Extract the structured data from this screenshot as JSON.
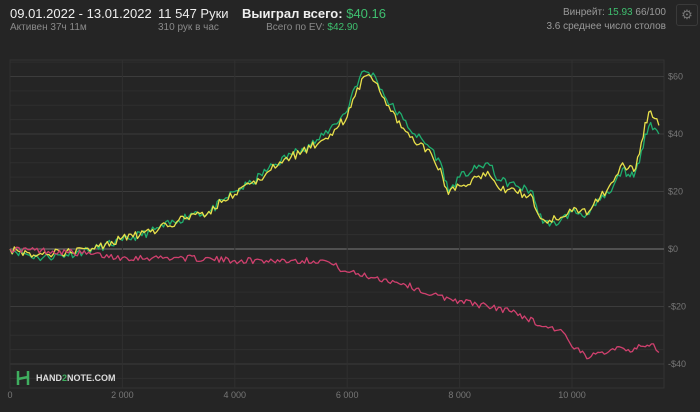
{
  "header": {
    "date_range": "09.01.2022 - 13.01.2022",
    "active": "Активен 37ч 11м",
    "hands": "11 547 Руки",
    "hands_per_hour": "310 рук в час",
    "won_label": "Выиграл всего:",
    "won_value": "$40.16",
    "ev_label": "Всего по EV:",
    "ev_value": "$42.90",
    "winrate_label": "Винрейт:",
    "winrate_value": "15.93",
    "winrate_unit": "66/100",
    "tables": "3.6 среднее число столов",
    "settings_icon": "gear-icon"
  },
  "logo": {
    "text_a": "HAND",
    "text_b": "2",
    "text_c": "NOTE.COM"
  },
  "colors": {
    "winnings": "#1fae6e",
    "ev": "#e8e04a",
    "nonshowdown": "#d0406e",
    "accent": "#3fbf6f"
  },
  "chart_data": {
    "type": "line",
    "xlim": [
      0,
      11547
    ],
    "ylim": [
      -45,
      67
    ],
    "x_ticks": [
      0,
      2000,
      4000,
      6000,
      8000,
      10000
    ],
    "x_tick_labels": [
      "0",
      "2 000",
      "4 000",
      "6 000",
      "8 000",
      "10 000"
    ],
    "y_ticks": [
      60,
      40,
      20,
      0,
      -20,
      -40
    ],
    "y_tick_labels": [
      "$60",
      "$40",
      "$20",
      "$0",
      "-$20",
      "-$40"
    ],
    "grid": true,
    "series": [
      {
        "color": "#1fae6e",
        "points": [
          [
            0,
            0
          ],
          [
            500,
            -3
          ],
          [
            1000,
            -2
          ],
          [
            1500,
            0
          ],
          [
            2000,
            3
          ],
          [
            2500,
            6
          ],
          [
            3000,
            10
          ],
          [
            3300,
            13
          ],
          [
            3500,
            12
          ],
          [
            3800,
            17
          ],
          [
            4000,
            20
          ],
          [
            4300,
            23
          ],
          [
            4600,
            28
          ],
          [
            5000,
            33
          ],
          [
            5200,
            35
          ],
          [
            5500,
            38
          ],
          [
            5700,
            42
          ],
          [
            6000,
            48
          ],
          [
            6100,
            55
          ],
          [
            6300,
            62
          ],
          [
            6500,
            60
          ],
          [
            6700,
            52
          ],
          [
            7000,
            45
          ],
          [
            7200,
            40
          ],
          [
            7500,
            35
          ],
          [
            7700,
            28
          ],
          [
            7800,
            20
          ],
          [
            8000,
            25
          ],
          [
            8300,
            28
          ],
          [
            8500,
            30
          ],
          [
            8700,
            24
          ],
          [
            9000,
            22
          ],
          [
            9300,
            20
          ],
          [
            9400,
            12
          ],
          [
            9600,
            8
          ],
          [
            9800,
            10
          ],
          [
            10000,
            13
          ],
          [
            10300,
            12
          ],
          [
            10500,
            17
          ],
          [
            10700,
            20
          ],
          [
            10900,
            28
          ],
          [
            11000,
            26
          ],
          [
            11100,
            25
          ],
          [
            11200,
            30
          ],
          [
            11300,
            40
          ],
          [
            11400,
            44
          ],
          [
            11547,
            40
          ]
        ]
      },
      {
        "color": "#e8e04a",
        "points": [
          [
            0,
            0
          ],
          [
            500,
            -2
          ],
          [
            1000,
            -1
          ],
          [
            1500,
            0
          ],
          [
            2000,
            4
          ],
          [
            2500,
            6
          ],
          [
            3000,
            10
          ],
          [
            3300,
            12
          ],
          [
            3500,
            12
          ],
          [
            3800,
            17
          ],
          [
            4000,
            19
          ],
          [
            4300,
            23
          ],
          [
            4600,
            27
          ],
          [
            5000,
            32
          ],
          [
            5200,
            34
          ],
          [
            5500,
            37
          ],
          [
            5700,
            40
          ],
          [
            6000,
            46
          ],
          [
            6100,
            52
          ],
          [
            6300,
            60
          ],
          [
            6500,
            58
          ],
          [
            6700,
            50
          ],
          [
            7000,
            42
          ],
          [
            7200,
            37
          ],
          [
            7500,
            33
          ],
          [
            7700,
            25
          ],
          [
            7800,
            19
          ],
          [
            8000,
            22
          ],
          [
            8300,
            25
          ],
          [
            8500,
            27
          ],
          [
            8700,
            21
          ],
          [
            9000,
            20
          ],
          [
            9300,
            18
          ],
          [
            9400,
            12
          ],
          [
            9600,
            10
          ],
          [
            9800,
            11
          ],
          [
            10000,
            13
          ],
          [
            10300,
            13
          ],
          [
            10500,
            18
          ],
          [
            10700,
            23
          ],
          [
            10900,
            30
          ],
          [
            11000,
            28
          ],
          [
            11100,
            27
          ],
          [
            11200,
            33
          ],
          [
            11300,
            44
          ],
          [
            11400,
            48
          ],
          [
            11547,
            43
          ]
        ]
      },
      {
        "color": "#d0406e",
        "points": [
          [
            0,
            0
          ],
          [
            1000,
            -1
          ],
          [
            2000,
            -3
          ],
          [
            3000,
            -3
          ],
          [
            4000,
            -4
          ],
          [
            5000,
            -4
          ],
          [
            5600,
            -4
          ],
          [
            6000,
            -8
          ],
          [
            6500,
            -10
          ],
          [
            7000,
            -12
          ],
          [
            7500,
            -16
          ],
          [
            8000,
            -18
          ],
          [
            8500,
            -20
          ],
          [
            9000,
            -22
          ],
          [
            9500,
            -27
          ],
          [
            9800,
            -28
          ],
          [
            10000,
            -34
          ],
          [
            10300,
            -38
          ],
          [
            10500,
            -36
          ],
          [
            10800,
            -34
          ],
          [
            11000,
            -35
          ],
          [
            11300,
            -34
          ],
          [
            11450,
            -33
          ],
          [
            11547,
            -36
          ]
        ]
      }
    ]
  }
}
